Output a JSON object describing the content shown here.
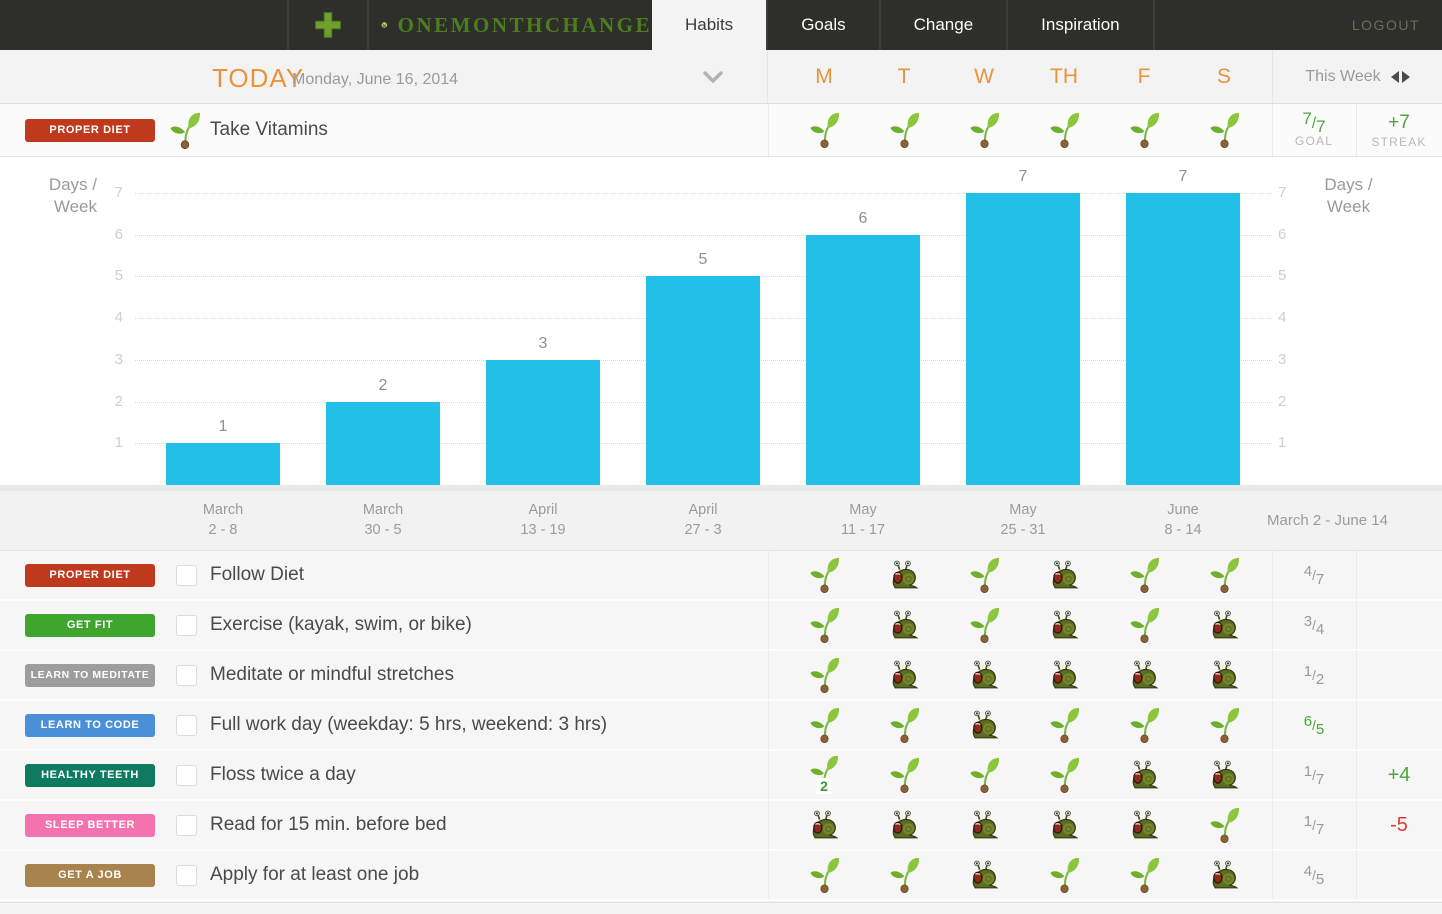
{
  "nav": {
    "logo_text": "onemonthchange",
    "tabs": [
      {
        "label": "Habits",
        "active": true
      },
      {
        "label": "Goals",
        "active": false
      },
      {
        "label": "Change",
        "active": false
      },
      {
        "label": "Inspiration",
        "active": false
      }
    ],
    "logout_label": "LOGOUT"
  },
  "icons": {
    "add": "plus-icon",
    "logo": "seedling-logo-icon",
    "expand": "chevron-down-icon",
    "week_prev": "arrow-left-icon",
    "week_next": "arrow-right-icon",
    "day_done": "sprout-icon",
    "day_missed": "snail-icon"
  },
  "date_header": {
    "today_label": "TODAY",
    "date": "Monday, June 16, 2014",
    "day_columns": [
      "M",
      "T",
      "W",
      "TH",
      "F",
      "S"
    ],
    "week_nav_label": "This Week"
  },
  "featured_habit": {
    "badge": {
      "label": "PROPER DIET",
      "color": "#bf3a1d"
    },
    "name": "Take Vitamins",
    "days": [
      "sprout",
      "sprout",
      "sprout",
      "sprout",
      "sprout",
      "sprout"
    ],
    "goal": {
      "num": "7",
      "den": "7",
      "label": "GOAL",
      "color": "green"
    },
    "streak": {
      "value": "+7",
      "label": "STREAK",
      "color": "green"
    }
  },
  "chart_data": {
    "type": "bar",
    "categories": [
      [
        "March",
        "2 - 8"
      ],
      [
        "March",
        "30 - 5"
      ],
      [
        "April",
        "13 - 19"
      ],
      [
        "April",
        "27 - 3"
      ],
      [
        "May",
        "11 - 17"
      ],
      [
        "May",
        "25 - 31"
      ],
      [
        "June",
        "8 - 14"
      ]
    ],
    "values": [
      1,
      2,
      3,
      5,
      6,
      7,
      7
    ],
    "ylabel": "Days / Week",
    "yticks": [
      1,
      2,
      3,
      4,
      5,
      6,
      7
    ],
    "ylim": [
      0,
      7
    ],
    "grid": "dotted horizontal",
    "bar_color": "#22c0e8",
    "range_label": "March 2 - June 14"
  },
  "habits": [
    {
      "badge": "PROPER DIET",
      "badge_color": "#bf3a1d",
      "name": "Follow Diet",
      "days": [
        "sprout",
        "snail",
        "sprout",
        "snail",
        "sprout",
        "sprout"
      ],
      "score": {
        "num": "4",
        "den": "7",
        "color": "gray"
      },
      "streak": null
    },
    {
      "badge": "GET FIT",
      "badge_color": "#3fa52f",
      "name": "Exercise (kayak, swim, or bike)",
      "days": [
        "sprout",
        "snail",
        "sprout",
        "snail",
        "sprout",
        "snail"
      ],
      "score": {
        "num": "3",
        "den": "4",
        "color": "gray"
      },
      "streak": null
    },
    {
      "badge": "LEARN TO MEDITATE",
      "badge_color": "#9d9d9d",
      "name": "Meditate or mindful stretches",
      "days": [
        "sprout",
        "snail",
        "snail",
        "snail",
        "snail",
        "snail"
      ],
      "score": {
        "num": "1",
        "den": "2",
        "color": "gray"
      },
      "streak": null
    },
    {
      "badge": "LEARN TO CODE",
      "badge_color": "#4a90d9",
      "name": "Full work day (weekday: 5 hrs, weekend: 3 hrs)",
      "days": [
        "sprout",
        "sprout",
        "snail",
        "sprout",
        "sprout",
        "sprout"
      ],
      "score": {
        "num": "6",
        "den": "5",
        "color": "green"
      },
      "streak": null
    },
    {
      "badge": "HEALTHY TEETH",
      "badge_color": "#0e7a60",
      "name": "Floss twice a day",
      "days": [
        "sprout-2",
        "sprout",
        "sprout",
        "sprout",
        "snail",
        "snail"
      ],
      "score": {
        "num": "1",
        "den": "7",
        "color": "gray"
      },
      "streak": {
        "value": "+4",
        "color": "green"
      }
    },
    {
      "badge": "SLEEP BETTER",
      "badge_color": "#f473ae",
      "name": "Read for 15 min. before bed",
      "days": [
        "snail",
        "snail",
        "snail",
        "snail",
        "snail",
        "sprout"
      ],
      "score": {
        "num": "1",
        "den": "7",
        "color": "gray"
      },
      "streak": {
        "value": "-5",
        "color": "red"
      }
    },
    {
      "badge": "GET A JOB",
      "badge_color": "#a9834e",
      "name": "Apply for at least one job",
      "days": [
        "sprout",
        "sprout",
        "snail",
        "sprout",
        "sprout",
        "snail"
      ],
      "score": {
        "num": "4",
        "den": "5",
        "color": "gray"
      },
      "streak": null
    }
  ],
  "colors": {
    "nav_bg": "#2e2e2b",
    "accent_orange": "#e8943d",
    "bar_cyan": "#22c0e8",
    "positive_green": "#4ca73b",
    "negative_red": "#e13a2f"
  }
}
